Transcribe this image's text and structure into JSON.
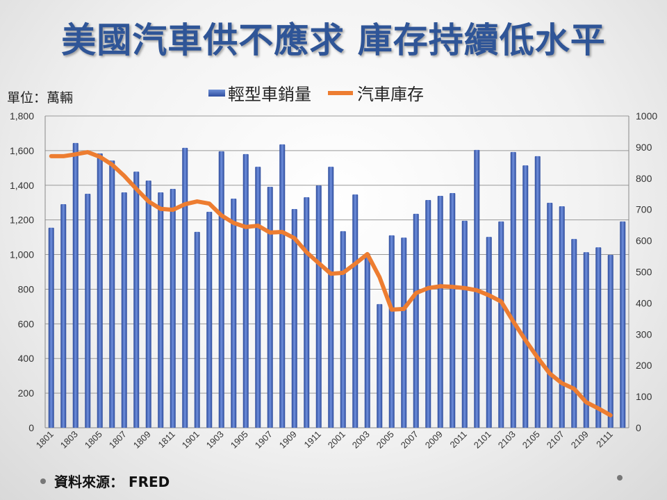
{
  "title": "美國汽車供不應求 庫存持續低水平",
  "unit_label": "單位：萬輛",
  "source": "資料來源： FRED",
  "chart_data": {
    "type": "bar+line",
    "title": "美國汽車供不應求 庫存持續低水平",
    "categories": [
      "1801",
      "1802",
      "1803",
      "1804",
      "1805",
      "1806",
      "1807",
      "1808",
      "1809",
      "1810",
      "1811",
      "1812",
      "1901",
      "1902",
      "1903",
      "1904",
      "1905",
      "1906",
      "1907",
      "1908",
      "1909",
      "1910",
      "1911",
      "1912",
      "2001",
      "2002",
      "2003",
      "2004",
      "2005",
      "2006",
      "2007",
      "2008",
      "2009",
      "2010",
      "2011",
      "2012",
      "2101",
      "2102",
      "2103",
      "2104",
      "2105",
      "2106",
      "2107",
      "2108",
      "2109",
      "2110",
      "2111",
      "2112"
    ],
    "series": [
      {
        "name": "輕型車銷量",
        "type": "bar",
        "axis": "left",
        "color": "#3f5fb5",
        "values": [
          1155,
          1291,
          1644,
          1351,
          1584,
          1543,
          1359,
          1479,
          1427,
          1359,
          1379,
          1616,
          1131,
          1247,
          1596,
          1323,
          1580,
          1507,
          1391,
          1636,
          1263,
          1331,
          1399,
          1507,
          1135,
          1347,
          1006,
          714,
          1111,
          1098,
          1235,
          1315,
          1339,
          1355,
          1195,
          1604,
          1102,
          1191,
          1592,
          1515,
          1568,
          1299,
          1279,
          1090,
          1014,
          1042,
          998,
          1191
        ]
      },
      {
        "name": "汽車庫存",
        "type": "line",
        "axis": "right",
        "color": "#ed7d31",
        "values": [
          871,
          871,
          877,
          884,
          869,
          844,
          808,
          766,
          726,
          702,
          699,
          717,
          726,
          719,
          681,
          657,
          644,
          648,
          626,
          628,
          608,
          563,
          528,
          494,
          497,
          526,
          557,
          483,
          379,
          381,
          432,
          448,
          454,
          452,
          448,
          441,
          425,
          405,
          341,
          281,
          225,
          174,
          143,
          125,
          82,
          62,
          40,
          null
        ]
      }
    ],
    "y_left": {
      "range": [
        0,
        1800
      ],
      "ticks": [
        "0",
        "200",
        "400",
        "600",
        "800",
        "1,000",
        "1,200",
        "1,400",
        "1,600",
        "1,800"
      ]
    },
    "y_right": {
      "range": [
        0,
        1000
      ],
      "ticks": [
        "0",
        "100",
        "200",
        "300",
        "400",
        "500",
        "600",
        "700",
        "800",
        "900",
        "1000"
      ]
    },
    "x_tick_labels": [
      "1801",
      "1803",
      "1805",
      "1807",
      "1809",
      "1811",
      "1901",
      "1903",
      "1905",
      "1907",
      "1909",
      "1911",
      "2001",
      "2003",
      "2005",
      "2007",
      "2009",
      "2011",
      "2101",
      "2103",
      "2105",
      "2107",
      "2109",
      "2111"
    ],
    "legend": [
      "輕型車銷量",
      "汽車庫存"
    ],
    "legend_position": "top",
    "grid": true
  }
}
